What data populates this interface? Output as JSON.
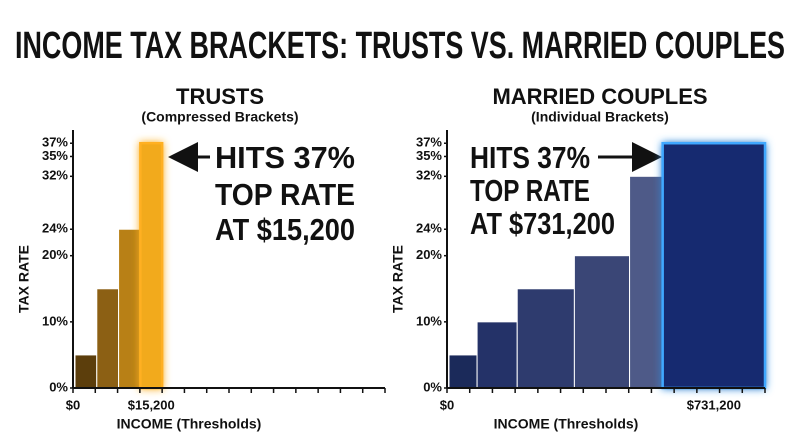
{
  "title": "INCOME TAX BRACKETS: TRUSTS VS. MARRIED COUPLES",
  "chart_data": [
    {
      "type": "bar",
      "title": "TRUSTS",
      "subtitle": "(Compressed Brackets)",
      "y_label": "TAX RATE",
      "x_label": "INCOME (Thresholds)",
      "origin_label": "$0",
      "categories": [
        null,
        null,
        null,
        "$15,200"
      ],
      "values": [
        5,
        15,
        24,
        37
      ],
      "colors": [
        "#5c3e0c",
        "#8c6014",
        "#b88016",
        "#f2aa1c"
      ],
      "ylim": [
        0,
        39
      ],
      "yticks": [
        {
          "value": 0,
          "label": "0%"
        },
        {
          "value": 10,
          "label": "10%"
        },
        {
          "value": 20,
          "label": "20%"
        },
        {
          "value": 24,
          "label": "24%"
        },
        {
          "value": 32,
          "label": "32%"
        },
        {
          "value": 35,
          "label": "35%"
        },
        {
          "value": 37,
          "label": "37%"
        }
      ],
      "annotation": [
        "HITS 37%",
        "TOP RATE",
        "AT $15,200"
      ]
    },
    {
      "type": "bar",
      "title": "MARRIED COUPLES",
      "subtitle": "(Individual Brackets)",
      "y_label": "TAX RATE",
      "x_label": "INCOME (Thresholds)",
      "origin_label": "$0",
      "categories": [
        null,
        null,
        null,
        null,
        null,
        "$731,200"
      ],
      "values": [
        5,
        10,
        15,
        20,
        32,
        37
      ],
      "colors": [
        "#1b2a5a",
        "#243268",
        "#2e3b6e",
        "#3a4676",
        "#4e5a88",
        "#172a70"
      ],
      "ylim": [
        0,
        39
      ],
      "yticks": [
        {
          "value": 0,
          "label": "0%"
        },
        {
          "value": 10,
          "label": "10%"
        },
        {
          "value": 20,
          "label": "20%"
        },
        {
          "value": 24,
          "label": "24%"
        },
        {
          "value": 32,
          "label": "32%"
        },
        {
          "value": 35,
          "label": "35%"
        },
        {
          "value": 37,
          "label": "37%"
        }
      ],
      "annotation": [
        "HITS 37%",
        "TOP RATE",
        "AT $731,200"
      ]
    }
  ]
}
